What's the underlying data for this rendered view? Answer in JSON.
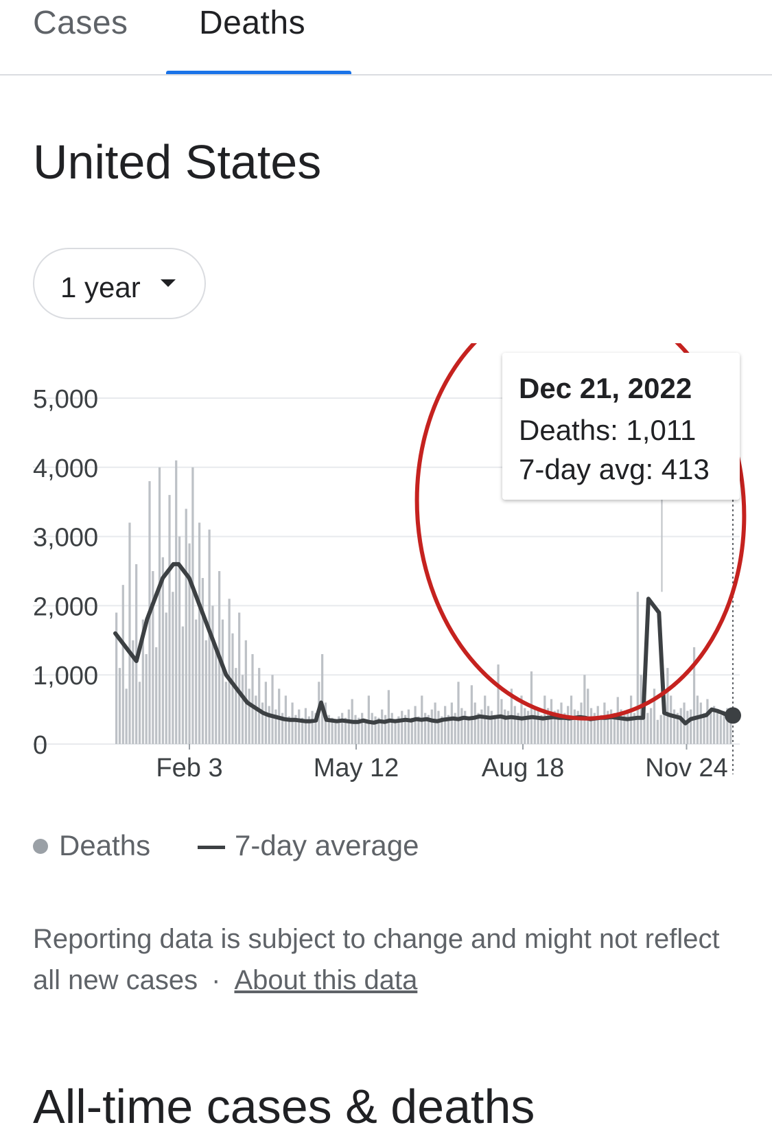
{
  "tabs": [
    {
      "label": "Cases",
      "selected": false
    },
    {
      "label": "Deaths",
      "selected": true
    }
  ],
  "region_title": "United States",
  "range_selector": {
    "label": "1 year"
  },
  "chart_data": {
    "type": "bar",
    "series": [
      {
        "name": "Deaths",
        "kind": "bar",
        "color": "#bdc1c6"
      },
      {
        "name": "7-day average",
        "kind": "line",
        "color": "#3c4043"
      }
    ],
    "y_ticks": [
      "5,000",
      "4,000",
      "3,000",
      "2,000",
      "1,000",
      "0"
    ],
    "ylim": [
      0,
      5000
    ],
    "x_ticks": [
      "Feb 3",
      "May 12",
      "Aug 18",
      "Nov 24"
    ],
    "daily_deaths": [
      1900,
      1100,
      2300,
      800,
      3200,
      1500,
      2600,
      900,
      1800,
      1300,
      3800,
      2500,
      1400,
      4000,
      2700,
      1900,
      3600,
      2200,
      4100,
      3000,
      1700,
      3400,
      2900,
      4000,
      1800,
      3200,
      2400,
      1500,
      3100,
      2000,
      1400,
      2500,
      1800,
      900,
      2100,
      1600,
      1100,
      1900,
      1000,
      1500,
      800,
      1300,
      700,
      1100,
      600,
      900,
      550,
      1000,
      500,
      800,
      450,
      700,
      400,
      600,
      420,
      500,
      380,
      520,
      400,
      480,
      450,
      900,
      1300,
      600,
      420,
      380,
      350,
      400,
      450,
      380,
      500,
      650,
      420,
      380,
      450,
      350,
      700,
      450,
      400,
      380,
      500,
      420,
      780,
      450,
      350,
      400,
      480,
      420,
      500,
      380,
      550,
      400,
      700,
      450,
      420,
      500,
      600,
      480,
      400,
      550,
      420,
      600,
      450,
      900,
      520,
      480,
      400,
      850,
      600,
      450,
      500,
      700,
      550,
      480,
      420,
      1150,
      650,
      500,
      480,
      800,
      550,
      450,
      700,
      520,
      480,
      1050,
      550,
      480,
      420,
      700,
      520,
      650,
      480,
      500,
      600,
      450,
      550,
      700,
      500,
      480,
      600,
      1000,
      800,
      520,
      450,
      550,
      420,
      600,
      480,
      500,
      450,
      680,
      500,
      450,
      500,
      700,
      450,
      2200,
      1000,
      900,
      450,
      520,
      800,
      350,
      420,
      600,
      1100,
      700,
      500,
      450,
      520,
      600,
      480,
      500,
      1400,
      700,
      600,
      450,
      650,
      500,
      550,
      450,
      420,
      480,
      520,
      450
    ],
    "seven_day_avg": [
      1600,
      1500,
      1400,
      1300,
      1200,
      1500,
      1800,
      2000,
      2200,
      2400,
      2500,
      2600,
      2600,
      2500,
      2400,
      2200,
      2000,
      1800,
      1600,
      1400,
      1200,
      1000,
      900,
      800,
      700,
      600,
      550,
      500,
      450,
      420,
      400,
      380,
      360,
      350,
      350,
      340,
      330,
      330,
      340,
      600,
      350,
      340,
      330,
      340,
      330,
      320,
      320,
      340,
      320,
      310,
      330,
      320,
      340,
      330,
      340,
      350,
      340,
      360,
      350,
      360,
      340,
      330,
      350,
      360,
      370,
      360,
      380,
      370,
      380,
      400,
      390,
      380,
      390,
      400,
      380,
      390,
      380,
      370,
      380,
      390,
      380,
      370,
      380,
      390,
      380,
      380,
      370,
      380,
      390,
      380,
      360,
      370,
      380,
      380,
      390,
      380,
      370,
      360,
      370,
      380,
      380,
      2100,
      2000,
      1900,
      450,
      420,
      400,
      380,
      300,
      360,
      380,
      400,
      420,
      500,
      480,
      450,
      420,
      413
    ],
    "highlight": {
      "date": "Dec 21, 2022",
      "deaths": 1011,
      "seven_day_avg": 413
    }
  },
  "tooltip": {
    "date": "Dec 21, 2022",
    "deaths_text": "Deaths: 1,011",
    "avg_text": "7-day avg: 413"
  },
  "legend": {
    "deaths_label": "Deaths",
    "avg_label": "7-day average"
  },
  "footnote": {
    "text": "Reporting data is subject to change and might not reflect all new cases",
    "separator": "·",
    "link_label": "About this data"
  },
  "section_heading": "All-time cases & deaths",
  "colors": {
    "accent": "#1a73e8",
    "annotation_circle": "#c5221f",
    "bar": "#bdc1c6",
    "line": "#3c4043"
  }
}
